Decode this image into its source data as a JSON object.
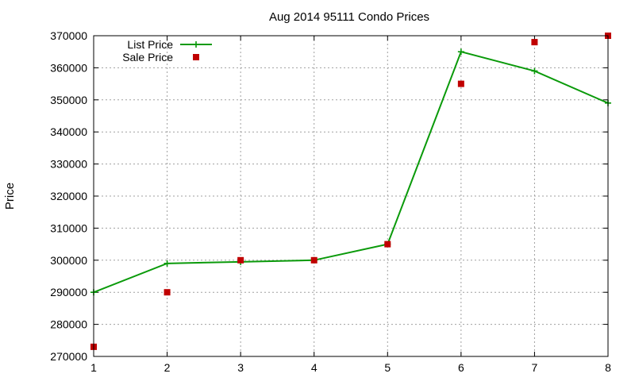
{
  "chart_data": {
    "type": "line",
    "title": "Aug 2014 95111 Condo Prices",
    "xlabel": "",
    "ylabel": "Price",
    "x": [
      1,
      2,
      3,
      4,
      5,
      6,
      7,
      8
    ],
    "xlim": [
      1,
      8
    ],
    "ylim": [
      270000,
      370000
    ],
    "x_ticks": [
      "1",
      "2",
      "3",
      "4",
      "5",
      "6",
      "7",
      "8"
    ],
    "y_ticks": [
      "270000",
      "280000",
      "290000",
      "300000",
      "310000",
      "320000",
      "330000",
      "340000",
      "350000",
      "360000",
      "370000"
    ],
    "grid": true,
    "legend_position": "top-left",
    "series": [
      {
        "name": "List Price",
        "style": "lines-with-plus-points",
        "color": "#0a9a0a",
        "values": [
          290000,
          299000,
          299500,
          300000,
          305000,
          365000,
          359000,
          349000
        ]
      },
      {
        "name": "Sale Price",
        "style": "square-points",
        "color": "#c00000",
        "values": [
          273000,
          290000,
          300000,
          300000,
          305000,
          355000,
          368000,
          370000
        ]
      }
    ]
  }
}
